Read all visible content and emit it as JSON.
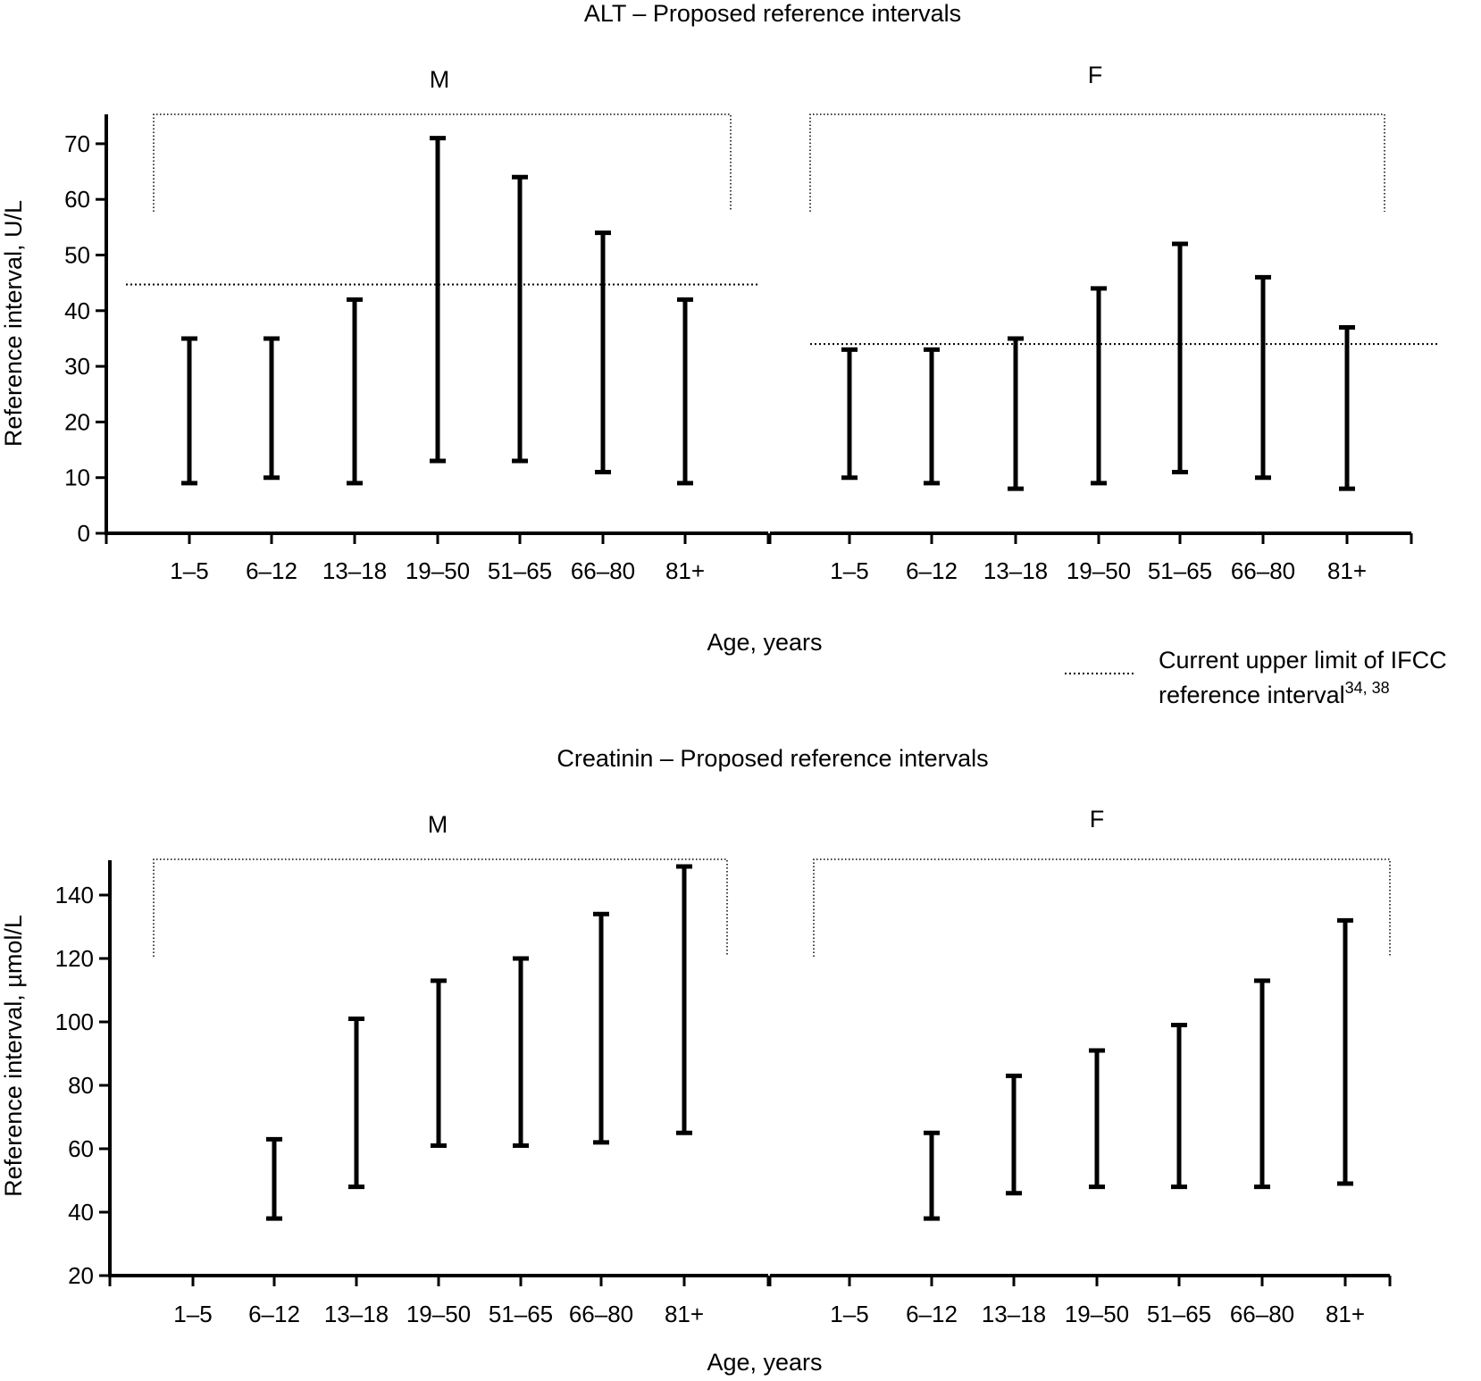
{
  "chart_data": [
    {
      "type": "range-bar",
      "title": "ALT – Proposed reference intervals",
      "ylabel": "Reference interval, U/L",
      "xlabel": "Age, years",
      "ylim": [
        0,
        75
      ],
      "yticks": [
        0,
        10,
        20,
        30,
        40,
        50,
        60,
        70
      ],
      "categories": [
        "1–5",
        "6–12",
        "13–18",
        "19–50",
        "51–65",
        "66–80",
        "81+"
      ],
      "groups": [
        {
          "name": "M",
          "series": [
            {
              "category": "1–5",
              "low": 9,
              "high": 35
            },
            {
              "category": "6–12",
              "low": 10,
              "high": 35
            },
            {
              "category": "13–18",
              "low": 9,
              "high": 42
            },
            {
              "category": "19–50",
              "low": 13,
              "high": 71
            },
            {
              "category": "51–65",
              "low": 13,
              "high": 64
            },
            {
              "category": "66–80",
              "low": 11,
              "high": 54
            },
            {
              "category": "81+",
              "low": 9,
              "high": 42
            }
          ],
          "reference_line": 44.7
        },
        {
          "name": "F",
          "series": [
            {
              "category": "1–5",
              "low": 10,
              "high": 33
            },
            {
              "category": "6–12",
              "low": 9,
              "high": 33
            },
            {
              "category": "13–18",
              "low": 8,
              "high": 35
            },
            {
              "category": "19–50",
              "low": 9,
              "high": 44
            },
            {
              "category": "51–65",
              "low": 11,
              "high": 52
            },
            {
              "category": "66–80",
              "low": 10,
              "high": 46
            },
            {
              "category": "81+",
              "low": 8,
              "high": 37
            }
          ],
          "reference_line": 34
        }
      ],
      "legend": {
        "line1": "Current upper limit of IFCC",
        "line2": "reference interval",
        "superscript": "34, 38"
      }
    },
    {
      "type": "range-bar",
      "title": "Creatinin – Proposed reference intervals",
      "ylabel": "Reference interval, µmol/L",
      "xlabel": "Age, years",
      "ylim": [
        20,
        150
      ],
      "yticks": [
        20,
        40,
        60,
        80,
        100,
        120,
        140
      ],
      "categories": [
        "1–5",
        "6–12",
        "13–18",
        "19–50",
        "51–65",
        "66–80",
        "81+"
      ],
      "groups": [
        {
          "name": "M",
          "series": [
            {
              "category": "1–5",
              "low": null,
              "high": null
            },
            {
              "category": "6–12",
              "low": 38,
              "high": 63
            },
            {
              "category": "13–18",
              "low": 48,
              "high": 101
            },
            {
              "category": "19–50",
              "low": 61,
              "high": 113
            },
            {
              "category": "51–65",
              "low": 61,
              "high": 120
            },
            {
              "category": "66–80",
              "low": 62,
              "high": 134
            },
            {
              "category": "81+",
              "low": 65,
              "high": 149
            }
          ]
        },
        {
          "name": "F",
          "series": [
            {
              "category": "1–5",
              "low": null,
              "high": null
            },
            {
              "category": "6–12",
              "low": 38,
              "high": 65
            },
            {
              "category": "13–18",
              "low": 46,
              "high": 83
            },
            {
              "category": "19–50",
              "low": 48,
              "high": 91
            },
            {
              "category": "51–65",
              "low": 48,
              "high": 99
            },
            {
              "category": "66–80",
              "low": 48,
              "high": 113
            },
            {
              "category": "81+",
              "low": 49,
              "high": 132
            }
          ]
        }
      ]
    }
  ]
}
